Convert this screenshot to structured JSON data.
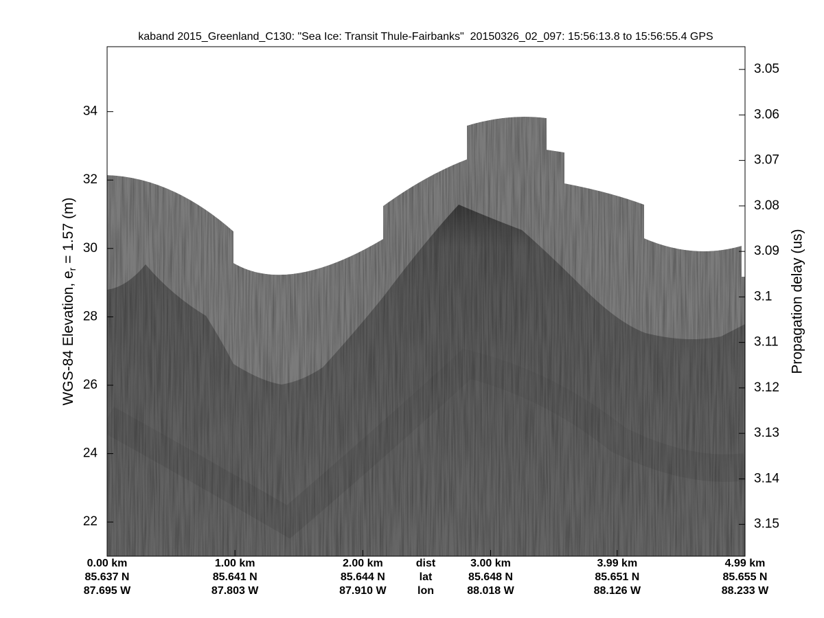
{
  "chart_data": {
    "type": "echogram",
    "title": "kaband 2015_Greenland_C130: \"Sea Ice: Transit Thule-Fairbanks\"  20150326_02_097: 15:56:13.8 to 15:56:55.4 GPS",
    "ylabel": "WGS-84 Elevation, e",
    "ylabel_sub": "r",
    "ylabel_rest": " = 1.57 (m)",
    "y2label": "Propagation delay (us)",
    "ylim": [
      21,
      35.9
    ],
    "yticks": [
      22,
      24,
      26,
      28,
      30,
      32,
      34
    ],
    "y2lim": [
      3.157,
      3.045
    ],
    "y2ticks": [
      3.05,
      3.06,
      3.07,
      3.08,
      3.09,
      3.1,
      3.11,
      3.12,
      3.13,
      3.14,
      3.15
    ],
    "xlim": [
      0,
      4.99
    ],
    "xticks": [
      {
        "value": 0,
        "label": "0.00 km"
      },
      {
        "value": 1,
        "label": "1.00 km"
      },
      {
        "value": 2,
        "label": "2.00 km"
      },
      {
        "value": 3,
        "label": "3.00 km"
      },
      {
        "value": 3.99,
        "label": "3.99 km"
      },
      {
        "value": 4.99,
        "label": "4.99 km"
      }
    ],
    "x_row_labels": [
      "dist",
      "lat",
      "lon"
    ],
    "lat_labels": [
      "85.637 N",
      "85.641 N",
      "85.644 N",
      "85.648 N",
      "85.651 N",
      "85.655 N"
    ],
    "lon_labels": [
      "87.695 W",
      "87.803 W",
      "87.910 W",
      "88.018 W",
      "88.126 W",
      "88.233 W"
    ]
  }
}
